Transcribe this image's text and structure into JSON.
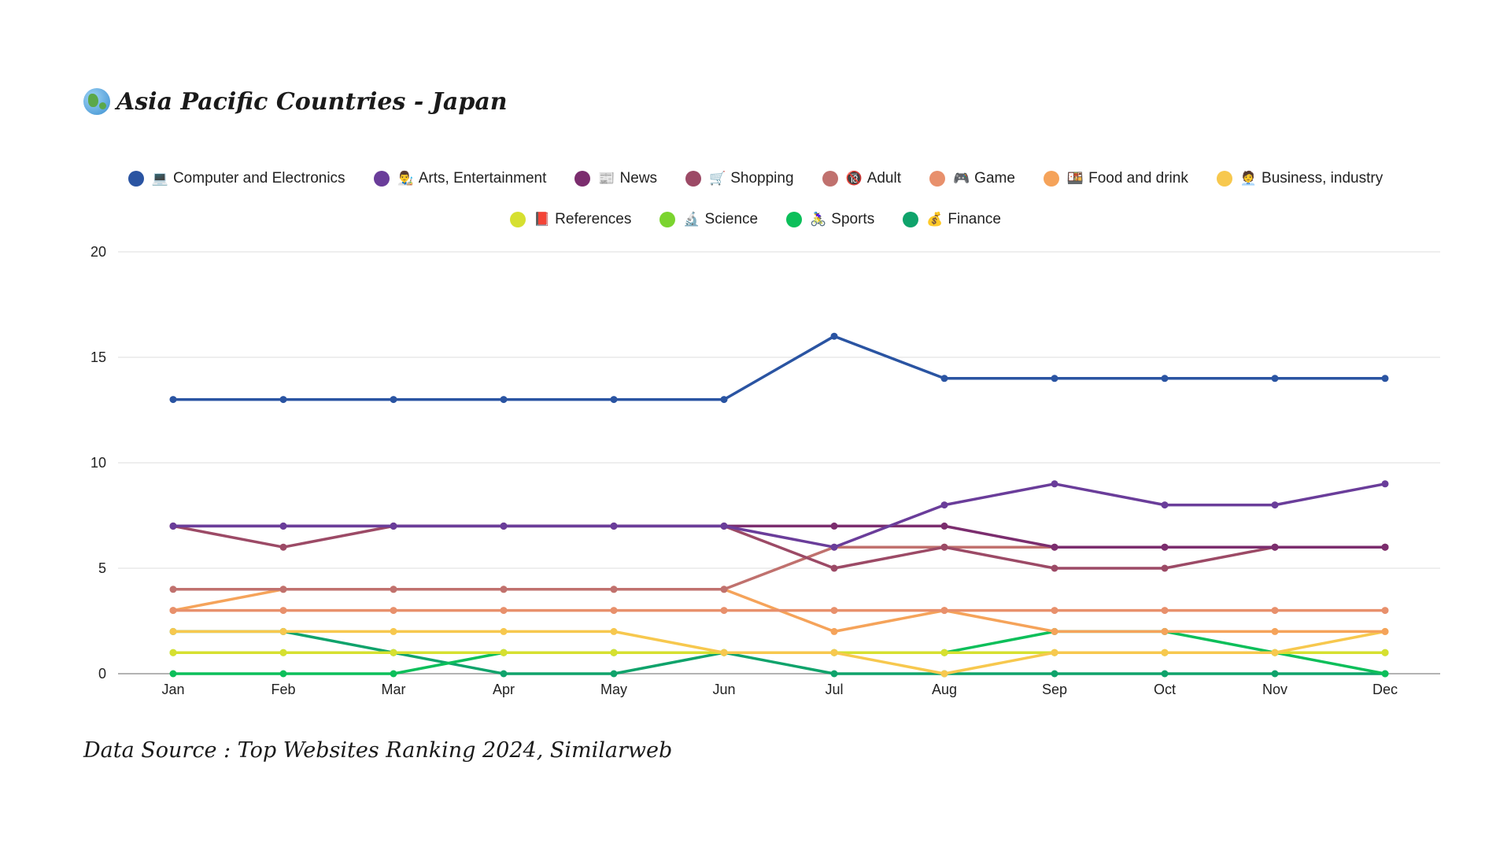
{
  "title": {
    "icon": "globe-asia-australia-icon",
    "text": "Asia Pacific Countries - Japan"
  },
  "footer": "Data Source : Top Websites Ranking 2024, Similarweb",
  "legend": [
    {
      "label": "Computer and Electronics",
      "emoji": "💻",
      "icon": "laptop-icon",
      "color": "#2a54a2"
    },
    {
      "label": "Arts, Entertainment",
      "emoji": "👨‍🎨",
      "icon": "artist-icon",
      "color": "#6a3d9a"
    },
    {
      "label": "News",
      "emoji": "📰",
      "icon": "newspaper-icon",
      "color": "#7b2d6e"
    },
    {
      "label": "Shopping",
      "emoji": "🛒",
      "icon": "shopping-cart-icon",
      "color": "#9c4a66"
    },
    {
      "label": "Adult",
      "emoji": "🔞",
      "icon": "adult-icon",
      "color": "#c0716e"
    },
    {
      "label": "Game",
      "emoji": "🎮",
      "icon": "game-controller-icon",
      "color": "#e8906c"
    },
    {
      "label": "Food and drink",
      "emoji": "🍱",
      "icon": "bento-icon",
      "color": "#f5a35a"
    },
    {
      "label": "Business, industry",
      "emoji": "🧑‍💼",
      "icon": "office-worker-icon",
      "color": "#f7c84e"
    },
    {
      "label": "References",
      "emoji": "📕",
      "icon": "bookmark-icon",
      "color": "#d6e030"
    },
    {
      "label": "Science",
      "emoji": "🔬",
      "icon": "microscope-icon",
      "color": "#7bd42f"
    },
    {
      "label": "Sports",
      "emoji": "🚴‍♀️",
      "icon": "cyclist-icon",
      "color": "#0cbf5a"
    },
    {
      "label": "Finance",
      "emoji": "💰",
      "icon": "money-bag-icon",
      "color": "#0fa36b"
    }
  ],
  "chart_data": {
    "type": "line",
    "title": "Asia Pacific Countries - Japan",
    "xlabel": "",
    "ylabel": "",
    "ylim": [
      0,
      20
    ],
    "yticks": [
      0,
      5,
      10,
      15,
      20
    ],
    "grid": true,
    "legend_position": "top-center",
    "categories": [
      "Jan",
      "Feb",
      "Mar",
      "Apr",
      "May",
      "Jun",
      "Jul",
      "Aug",
      "Sep",
      "Oct",
      "Nov",
      "Dec"
    ],
    "series": [
      {
        "name": "Computer and Electronics",
        "values": [
          13,
          13,
          13,
          13,
          13,
          13,
          16,
          14,
          14,
          14,
          14,
          14
        ]
      },
      {
        "name": "Arts, Entertainment",
        "values": [
          7,
          7,
          7,
          7,
          7,
          7,
          6,
          8,
          9,
          8,
          8,
          9
        ]
      },
      {
        "name": "News",
        "values": [
          7,
          7,
          7,
          7,
          7,
          7,
          7,
          7,
          6,
          6,
          6,
          6
        ]
      },
      {
        "name": "Shopping",
        "values": [
          7,
          6,
          7,
          7,
          7,
          7,
          5,
          6,
          5,
          5,
          6,
          6
        ]
      },
      {
        "name": "Adult",
        "values": [
          4,
          4,
          4,
          4,
          4,
          4,
          6,
          6,
          6,
          6,
          6,
          6
        ]
      },
      {
        "name": "Game",
        "values": [
          3,
          3,
          3,
          3,
          3,
          3,
          3,
          3,
          3,
          3,
          3,
          3
        ]
      },
      {
        "name": "Food and drink",
        "values": [
          3,
          4,
          4,
          4,
          4,
          4,
          2,
          3,
          2,
          2,
          2,
          2
        ]
      },
      {
        "name": "Business, industry",
        "values": [
          2,
          2,
          2,
          2,
          2,
          1,
          1,
          0,
          1,
          1,
          1,
          2
        ]
      },
      {
        "name": "References",
        "values": [
          1,
          1,
          1,
          1,
          1,
          1,
          1,
          1,
          1,
          1,
          1,
          1
        ]
      },
      {
        "name": "Science",
        "values": [
          1,
          1,
          1,
          1,
          1,
          1,
          1,
          1,
          1,
          1,
          1,
          1
        ]
      },
      {
        "name": "Sports",
        "values": [
          0,
          0,
          0,
          1,
          1,
          1,
          1,
          1,
          2,
          2,
          1,
          0
        ]
      },
      {
        "name": "Finance",
        "values": [
          2,
          2,
          1,
          0,
          0,
          1,
          0,
          0,
          0,
          0,
          0,
          0
        ]
      }
    ]
  }
}
